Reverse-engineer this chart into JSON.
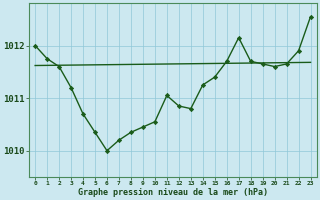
{
  "xlabel": "Graphe pression niveau de la mer (hPa)",
  "bg_color": "#cce8f0",
  "grid_color_minor": "#b0d8e0",
  "grid_color_major": "#80b8c8",
  "line_color": "#1a5c1a",
  "xlim": [
    -0.5,
    23.5
  ],
  "ylim": [
    1009.5,
    1012.8
  ],
  "yticks": [
    1010,
    1011,
    1012
  ],
  "xticks": [
    0,
    1,
    2,
    3,
    4,
    5,
    6,
    7,
    8,
    9,
    10,
    11,
    12,
    13,
    14,
    15,
    16,
    17,
    18,
    19,
    20,
    21,
    22,
    23
  ],
  "hours": [
    0,
    1,
    2,
    3,
    4,
    5,
    6,
    7,
    8,
    9,
    10,
    11,
    12,
    13,
    14,
    15,
    16,
    17,
    18,
    19,
    20,
    21,
    22,
    23
  ],
  "pressure": [
    1012.0,
    1011.75,
    1011.6,
    1011.2,
    1010.7,
    1010.35,
    1010.0,
    1010.2,
    1010.35,
    1010.45,
    1010.55,
    1011.05,
    1010.85,
    1010.8,
    1011.25,
    1011.4,
    1011.7,
    1012.15,
    1011.7,
    1011.65,
    1011.6,
    1011.65,
    1011.9,
    1012.55
  ],
  "trend_x": [
    0,
    23
  ],
  "trend_y": [
    1011.62,
    1011.68
  ],
  "marker": "D",
  "marker_size": 2.2,
  "linewidth": 1.0
}
